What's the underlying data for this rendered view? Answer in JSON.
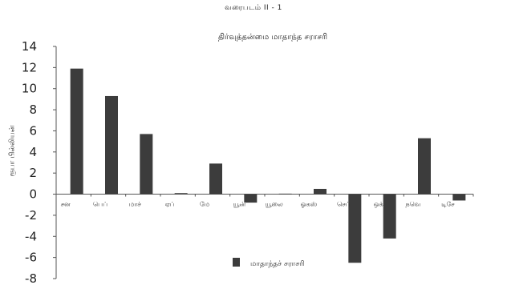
{
  "figure_label": "வரைபடம் II - 1",
  "chart_data": {
    "type": "bar",
    "title": "திர்வுத்தன்மை மாதாந்த சராசரி",
    "xlabel": "",
    "ylabel": "ரூபா பில்லியன்",
    "categories": [
      "சன",
      "பெப்",
      "மாச்",
      "ஏப்",
      "மே",
      "யூன்",
      "யூலை",
      "ஓகஸ்",
      "செப்",
      "ஒக்",
      "நவெ",
      "டிசே"
    ],
    "series": [
      {
        "name": "மாதாந்தச் சராசரி",
        "values": [
          11.9,
          9.3,
          5.7,
          0.1,
          2.9,
          -0.8,
          0.05,
          0.5,
          -6.5,
          -4.2,
          5.3,
          -0.6
        ]
      }
    ],
    "ylim": [
      -8,
      14
    ],
    "yticks": [
      14,
      12,
      10,
      8,
      6,
      4,
      2,
      0,
      -2,
      -4,
      -6,
      -8
    ],
    "grid": false,
    "legend_position": "bottom-center",
    "bar_color": "#3c3c3c"
  }
}
